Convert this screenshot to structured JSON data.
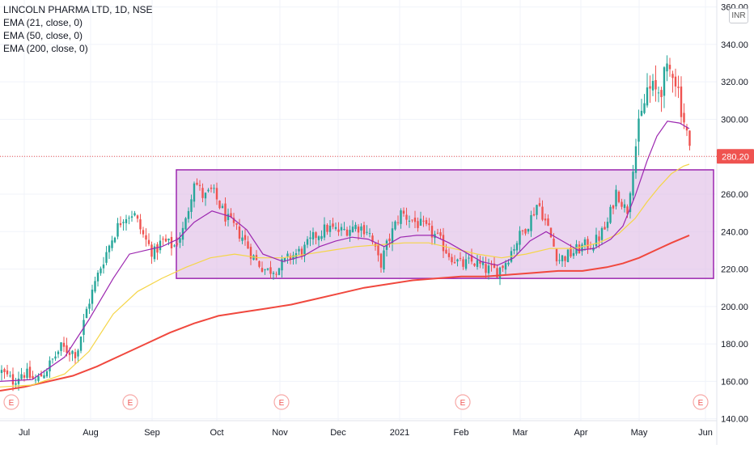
{
  "legend": {
    "symbol": "LINCOLN PHARMA LTD, 1D, NSE",
    "ema21": "EMA (21, close, 0)",
    "ema50": "EMA (50, close, 0)",
    "ema200": "EMA (200, close, 0)"
  },
  "currency": "INR",
  "last_price_label": "280.20",
  "event_marker_label": "E",
  "colors": {
    "up": "#26a69a",
    "down": "#ef5350",
    "ema21": "#9c27b0",
    "ema50": "#f5d547",
    "ema200": "#f0483e",
    "box_fill": "#e1bee7",
    "box_stroke": "#9c27b0",
    "price_line": "#ef5350"
  },
  "chart_data": {
    "type": "candlestick",
    "title": "LINCOLN PHARMA LTD, 1D, NSE",
    "ylim": [
      139,
      362
    ],
    "y_ticks": [
      140,
      160,
      180,
      200,
      220,
      240,
      260,
      280,
      300,
      320,
      340,
      360
    ],
    "y_tick_labels": [
      "140.00",
      "160.00",
      "180.00",
      "200.00",
      "220.00",
      "240.00",
      "260.00",
      "280.00",
      "300.00",
      "320.00",
      "340.00",
      "360.00"
    ],
    "x_labels": [
      "Jul",
      "Aug",
      "Sep",
      "Oct",
      "Nov",
      "Dec",
      "2021",
      "Feb",
      "Mar",
      "Apr",
      "May",
      "Jun"
    ],
    "x_label_pos": [
      30,
      112,
      188,
      268,
      346,
      418,
      494,
      570,
      643,
      718,
      790,
      872
    ],
    "x_domain": [
      0,
      932
    ],
    "last_price": 280.2,
    "event_markers_x": [
      14,
      161,
      348,
      572,
      866
    ],
    "rectangle": {
      "x_start": 218,
      "x_end": 882,
      "y_top": 273,
      "y_bottom": 215
    },
    "anchors": [
      [
        2,
        165
      ],
      [
        15,
        160
      ],
      [
        28,
        165
      ],
      [
        45,
        160
      ],
      [
        60,
        168
      ],
      [
        75,
        178
      ],
      [
        95,
        175
      ],
      [
        108,
        200
      ],
      [
        125,
        222
      ],
      [
        140,
        238
      ],
      [
        152,
        248
      ],
      [
        165,
        250
      ],
      [
        178,
        237
      ],
      [
        190,
        228
      ],
      [
        200,
        235
      ],
      [
        215,
        232
      ],
      [
        228,
        242
      ],
      [
        240,
        268
      ],
      [
        252,
        258
      ],
      [
        262,
        262
      ],
      [
        280,
        247
      ],
      [
        300,
        237
      ],
      [
        315,
        225
      ],
      [
        330,
        219
      ],
      [
        345,
        221
      ],
      [
        360,
        227
      ],
      [
        375,
        230
      ],
      [
        390,
        238
      ],
      [
        405,
        242
      ],
      [
        420,
        240
      ],
      [
        440,
        243
      ],
      [
        455,
        241
      ],
      [
        470,
        222
      ],
      [
        480,
        235
      ],
      [
        495,
        250
      ],
      [
        510,
        246
      ],
      [
        525,
        242
      ],
      [
        540,
        237
      ],
      [
        555,
        228
      ],
      [
        570,
        222
      ],
      [
        585,
        224
      ],
      [
        600,
        220
      ],
      [
        615,
        219
      ],
      [
        625,
        224
      ],
      [
        640,
        236
      ],
      [
        655,
        246
      ],
      [
        665,
        256
      ],
      [
        677,
        242
      ],
      [
        690,
        225
      ],
      [
        705,
        228
      ],
      [
        720,
        232
      ],
      [
        735,
        234
      ],
      [
        750,
        243
      ],
      [
        762,
        262
      ],
      [
        775,
        250
      ],
      [
        785,
        284
      ],
      [
        800,
        316
      ],
      [
        812,
        314
      ],
      [
        822,
        322
      ],
      [
        832,
        328
      ],
      [
        840,
        312
      ],
      [
        848,
        294
      ],
      [
        854,
        280
      ]
    ],
    "ema21": [
      [
        0,
        160
      ],
      [
        40,
        161
      ],
      [
        80,
        173
      ],
      [
        110,
        193
      ],
      [
        140,
        215
      ],
      [
        160,
        228
      ],
      [
        180,
        230
      ],
      [
        200,
        232
      ],
      [
        220,
        236
      ],
      [
        240,
        245
      ],
      [
        262,
        251
      ],
      [
        285,
        248
      ],
      [
        305,
        241
      ],
      [
        325,
        228
      ],
      [
        350,
        224
      ],
      [
        375,
        227
      ],
      [
        395,
        232
      ],
      [
        415,
        235
      ],
      [
        435,
        237
      ],
      [
        455,
        236
      ],
      [
        475,
        232
      ],
      [
        495,
        237
      ],
      [
        515,
        238
      ],
      [
        535,
        238
      ],
      [
        555,
        234
      ],
      [
        575,
        229
      ],
      [
        595,
        224
      ],
      [
        615,
        222
      ],
      [
        635,
        226
      ],
      [
        655,
        235
      ],
      [
        675,
        240
      ],
      [
        695,
        235
      ],
      [
        715,
        230
      ],
      [
        735,
        231
      ],
      [
        755,
        236
      ],
      [
        770,
        243
      ],
      [
        785,
        259
      ],
      [
        800,
        278
      ],
      [
        812,
        291
      ],
      [
        825,
        299
      ],
      [
        840,
        298
      ],
      [
        852,
        295
      ]
    ],
    "ema50": [
      [
        0,
        157
      ],
      [
        40,
        158
      ],
      [
        80,
        164
      ],
      [
        110,
        176
      ],
      [
        140,
        196
      ],
      [
        170,
        208
      ],
      [
        200,
        215
      ],
      [
        230,
        221
      ],
      [
        260,
        226
      ],
      [
        290,
        228
      ],
      [
        320,
        226
      ],
      [
        350,
        226
      ],
      [
        380,
        228
      ],
      [
        410,
        230
      ],
      [
        440,
        232
      ],
      [
        470,
        233
      ],
      [
        500,
        234
      ],
      [
        530,
        234
      ],
      [
        560,
        231
      ],
      [
        590,
        228
      ],
      [
        620,
        226
      ],
      [
        650,
        228
      ],
      [
        680,
        231
      ],
      [
        710,
        231
      ],
      [
        740,
        234
      ],
      [
        765,
        239
      ],
      [
        785,
        247
      ],
      [
        800,
        256
      ],
      [
        815,
        264
      ],
      [
        830,
        271
      ],
      [
        845,
        275
      ],
      [
        852,
        276
      ]
    ],
    "ema200": [
      [
        0,
        155
      ],
      [
        30,
        157
      ],
      [
        60,
        160
      ],
      [
        90,
        163
      ],
      [
        120,
        168
      ],
      [
        150,
        174
      ],
      [
        180,
        180
      ],
      [
        210,
        186
      ],
      [
        240,
        191
      ],
      [
        270,
        195
      ],
      [
        300,
        197
      ],
      [
        330,
        199
      ],
      [
        360,
        201
      ],
      [
        390,
        204
      ],
      [
        420,
        207
      ],
      [
        450,
        210
      ],
      [
        480,
        212
      ],
      [
        510,
        214
      ],
      [
        540,
        215
      ],
      [
        570,
        216
      ],
      [
        600,
        216
      ],
      [
        630,
        217
      ],
      [
        660,
        218
      ],
      [
        690,
        219
      ],
      [
        720,
        219
      ],
      [
        750,
        221
      ],
      [
        770,
        223
      ],
      [
        790,
        226
      ],
      [
        810,
        230
      ],
      [
        830,
        234
      ],
      [
        852,
        238
      ]
    ]
  }
}
